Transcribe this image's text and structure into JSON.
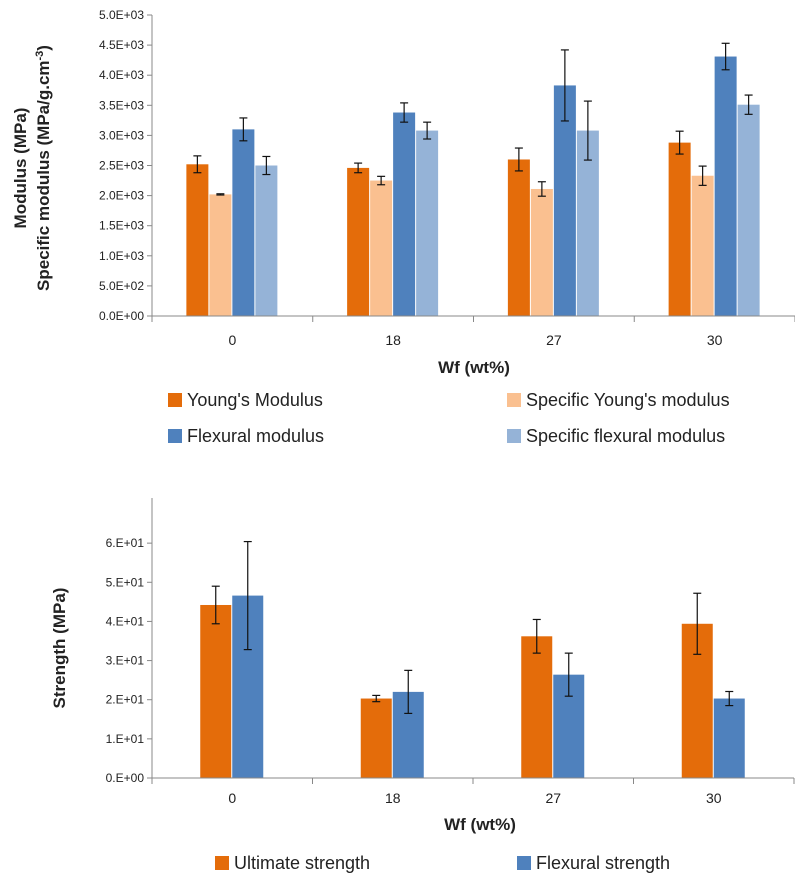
{
  "chart_data": [
    {
      "type": "bar",
      "xlabel": "Wf (wt%)",
      "ylabel_line1": "Modulus (MPa)",
      "ylabel_line2_prefix": "Specific modulus (MPa/g.cm",
      "ylabel_line2_sup": "-3",
      "ylabel_line2_suffix": ")",
      "categories": [
        "0",
        "18",
        "27",
        "30"
      ],
      "ylim": [
        0,
        5000
      ],
      "yticks": [
        0,
        500,
        1000,
        1500,
        2000,
        2500,
        3000,
        3500,
        4000,
        4500,
        5000
      ],
      "ytick_labels": [
        "0.0E+00",
        "5.0E+02",
        "1.0E+03",
        "1.5E+03",
        "2.0E+03",
        "2.5E+03",
        "3.0E+03",
        "3.5E+03",
        "4.0E+03",
        "4.5E+03",
        "5.0E+03"
      ],
      "grid": false,
      "legend_position": "bottom",
      "series": [
        {
          "name": "Young's Modulus",
          "color": "#e46c0a",
          "values": [
            2520,
            2460,
            2600,
            2880
          ],
          "errors": [
            140,
            80,
            190,
            190
          ]
        },
        {
          "name": "Specific Young's modulus",
          "color": "#fac090",
          "values": [
            2020,
            2250,
            2110,
            2330
          ],
          "errors": [
            10,
            70,
            120,
            160
          ]
        },
        {
          "name": "Flexural modulus",
          "color": "#4f81bd",
          "values": [
            3100,
            3380,
            3830,
            4310
          ],
          "errors": [
            190,
            160,
            590,
            220
          ]
        },
        {
          "name": "Specific flexural modulus",
          "color": "#95b3d7",
          "values": [
            2500,
            3080,
            3080,
            3510
          ],
          "errors": [
            150,
            140,
            490,
            160
          ]
        }
      ]
    },
    {
      "type": "bar",
      "xlabel": "Wf (wt%)",
      "ylabel": "Strength (MPa)",
      "categories": [
        "0",
        "18",
        "27",
        "30"
      ],
      "ylim": [
        0,
        70
      ],
      "yticks": [
        0,
        10,
        20,
        30,
        40,
        50,
        60
      ],
      "ytick_labels": [
        "0.E+00",
        "1.E+01",
        "2.E+01",
        "3.E+01",
        "4.E+01",
        "5.E+01",
        "6.E+01"
      ],
      "grid": false,
      "legend_position": "bottom",
      "series": [
        {
          "name": "Ultimate strength",
          "color": "#e46c0a",
          "values": [
            44.2,
            20.3,
            36.2,
            39.4
          ],
          "errors": [
            4.8,
            0.8,
            4.3,
            7.8
          ]
        },
        {
          "name": "Flexural strength",
          "color": "#4f81bd",
          "values": [
            46.6,
            22.0,
            26.4,
            20.3
          ],
          "errors": [
            13.8,
            5.5,
            5.5,
            1.8
          ]
        }
      ]
    }
  ]
}
